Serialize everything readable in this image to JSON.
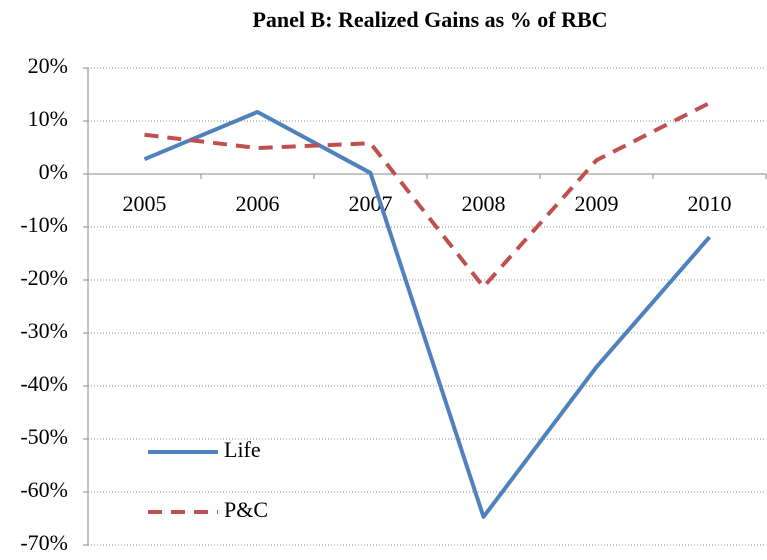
{
  "chart_data": {
    "type": "line",
    "title": "Panel B: Realized Gains as % of RBC",
    "categories": [
      "2005",
      "2006",
      "2007",
      "2008",
      "2009",
      "2010"
    ],
    "series": [
      {
        "name": "Life",
        "color": "#4f81bd",
        "dash": false,
        "values": [
          2.8,
          11.7,
          0.2,
          -64.7,
          -36.4,
          -11.9
        ]
      },
      {
        "name": "P&C",
        "color": "#c0504d",
        "dash": true,
        "values": [
          7.4,
          4.9,
          5.8,
          -21.3,
          2.6,
          13.4
        ]
      }
    ],
    "ylim": [
      -70,
      20
    ],
    "yticks": [
      {
        "value": -70,
        "label": "-70%"
      },
      {
        "value": -60,
        "label": "-60%"
      },
      {
        "value": -50,
        "label": "-50%"
      },
      {
        "value": -40,
        "label": "-40%"
      },
      {
        "value": -30,
        "label": "-30%"
      },
      {
        "value": -20,
        "label": "-20%"
      },
      {
        "value": -10,
        "label": "-10%"
      },
      {
        "value": 0,
        "label": "0%"
      },
      {
        "value": 10,
        "label": "10%"
      },
      {
        "value": 20,
        "label": "20%"
      }
    ],
    "grid": true,
    "legend": "lower left"
  }
}
